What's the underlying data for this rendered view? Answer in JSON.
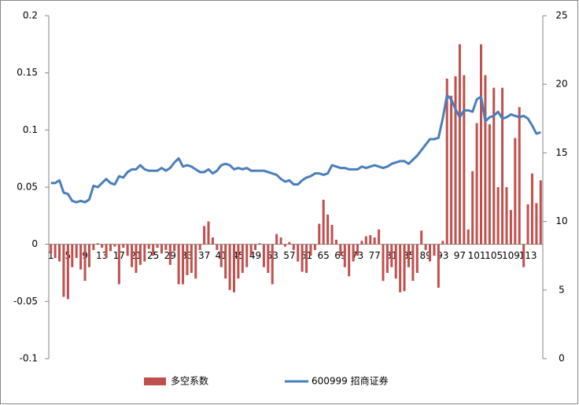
{
  "chart_data": {
    "type": "combo",
    "categories": [
      "1",
      null,
      null,
      null,
      "5",
      null,
      null,
      null,
      "9",
      null,
      null,
      null,
      "13",
      null,
      null,
      null,
      "17",
      null,
      null,
      null,
      "21",
      null,
      null,
      null,
      "25",
      null,
      null,
      null,
      "29",
      null,
      null,
      null,
      "33",
      null,
      null,
      null,
      "37",
      null,
      null,
      null,
      "41",
      null,
      null,
      null,
      "45",
      null,
      null,
      null,
      "49",
      null,
      null,
      null,
      "53",
      null,
      null,
      null,
      "57",
      null,
      null,
      null,
      "61",
      null,
      null,
      null,
      "65",
      null,
      null,
      null,
      "69",
      null,
      null,
      null,
      "73",
      null,
      null,
      null,
      "77",
      null,
      null,
      null,
      "81",
      null,
      null,
      null,
      "85",
      null,
      null,
      null,
      "89",
      null,
      null,
      null,
      "93",
      null,
      null,
      null,
      "97",
      null,
      null,
      null,
      "101",
      null,
      null,
      null,
      "105",
      null,
      null,
      null,
      "109",
      null,
      null,
      null,
      "113",
      null,
      null,
      null
    ],
    "series": [
      {
        "name": "多空系数",
        "type": "bar",
        "axis": "y",
        "color": "#c0504d",
        "values": [
          -0.008,
          -0.012,
          -0.015,
          -0.046,
          -0.048,
          -0.02,
          -0.012,
          -0.022,
          -0.032,
          -0.02,
          -0.005,
          0.001,
          -0.003,
          -0.012,
          -0.006,
          -0.002,
          -0.035,
          -0.003,
          -0.01,
          -0.02,
          -0.025,
          -0.018,
          -0.015,
          -0.004,
          -0.01,
          -0.003,
          -0.008,
          -0.005,
          -0.018,
          -0.006,
          -0.035,
          -0.035,
          -0.027,
          -0.025,
          -0.03,
          -0.005,
          0.016,
          0.02,
          0.006,
          -0.005,
          -0.02,
          -0.03,
          -0.04,
          -0.042,
          -0.03,
          -0.025,
          -0.02,
          -0.01,
          -0.005,
          0.001,
          -0.02,
          -0.025,
          -0.035,
          0.009,
          0.006,
          -0.002,
          0.002,
          -0.005,
          -0.015,
          -0.024,
          -0.025,
          -0.01,
          -0.005,
          0.018,
          0.039,
          0.026,
          0.017,
          0.004,
          -0.01,
          -0.02,
          -0.028,
          -0.015,
          -0.01,
          0.003,
          0.007,
          0.008,
          0.006,
          0.013,
          -0.032,
          -0.025,
          -0.02,
          -0.03,
          -0.042,
          -0.041,
          -0.02,
          -0.032,
          -0.025,
          0.012,
          -0.005,
          -0.015,
          -0.01,
          -0.038,
          0.003,
          0.145,
          0.13,
          0.147,
          0.175,
          0.148,
          0.013,
          0.064,
          0.106,
          0.175,
          0.148,
          0.105,
          0.137,
          0.05,
          0.137,
          0.05,
          0.03,
          0.093,
          0.12,
          -0.02,
          0.035,
          0.062,
          0.036,
          0.056
        ]
      },
      {
        "name": "600999 招商证券",
        "type": "line",
        "axis": "y2",
        "color": "#4a7ebb",
        "values": [
          12.8,
          12.8,
          13.0,
          12.1,
          12.0,
          11.5,
          11.4,
          11.5,
          11.4,
          11.6,
          12.6,
          12.5,
          12.8,
          13.1,
          12.8,
          12.7,
          13.3,
          13.2,
          13.6,
          13.8,
          13.8,
          14.1,
          13.8,
          13.7,
          13.7,
          13.7,
          13.9,
          13.7,
          13.9,
          14.3,
          14.6,
          14.0,
          14.1,
          14.0,
          13.8,
          13.6,
          13.6,
          13.8,
          13.5,
          13.7,
          14.1,
          14.2,
          14.1,
          13.8,
          13.9,
          13.8,
          13.9,
          13.7,
          13.7,
          13.7,
          13.7,
          13.6,
          13.5,
          13.4,
          13.1,
          12.9,
          13.0,
          12.7,
          12.7,
          13.0,
          13.2,
          13.3,
          13.5,
          13.5,
          13.4,
          13.5,
          14.1,
          14.0,
          13.9,
          13.9,
          13.8,
          13.8,
          13.8,
          14.0,
          13.9,
          14.0,
          14.1,
          14.0,
          13.9,
          14.0,
          14.2,
          14.3,
          14.4,
          14.4,
          14.2,
          14.5,
          14.8,
          15.2,
          15.6,
          16.0,
          16.0,
          16.1,
          17.5,
          19.2,
          18.9,
          18.2,
          17.6,
          18.1,
          18.1,
          18.0,
          18.9,
          19.1,
          17.3,
          17.6,
          17.7,
          18.0,
          17.5,
          17.6,
          17.8,
          17.7,
          17.6,
          17.7,
          17.5,
          17.0,
          16.4,
          16.5
        ]
      }
    ],
    "ylim": [
      -0.1,
      0.2
    ],
    "yticks": [
      -0.1,
      -0.05,
      0,
      0.05,
      0.1,
      0.15,
      0.2
    ],
    "y2lim": [
      0,
      25
    ],
    "y2ticks": [
      0,
      5,
      10,
      15,
      20,
      25
    ],
    "legend": "bottom"
  }
}
